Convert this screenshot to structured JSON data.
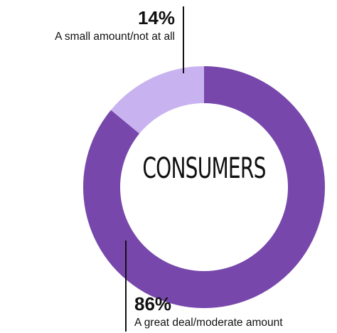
{
  "chart_data": {
    "type": "pie",
    "title": "CONSUMERS",
    "slices": [
      {
        "label": "A great deal/moderate amount",
        "value": 86,
        "display": "86%",
        "color": "#7747ab"
      },
      {
        "label": "A small amount/not at all",
        "value": 14,
        "display": "14%",
        "color": "#c8b3f0"
      }
    ],
    "donut": true
  }
}
